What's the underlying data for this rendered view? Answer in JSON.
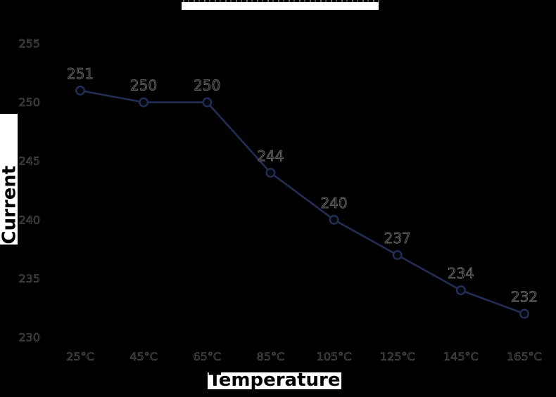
{
  "title": {
    "text": ""
  },
  "y_axis": {
    "label": "Current",
    "ticks": [
      230,
      235,
      240,
      245,
      250,
      255
    ]
  },
  "x_axis": {
    "label": "Temperature",
    "ticks": [
      "25°C",
      "45°C",
      "65°C",
      "85°C",
      "105°C",
      "125°C",
      "145°C",
      "165°C"
    ]
  },
  "chart_data": {
    "type": "line",
    "x": [
      "25°C",
      "45°C",
      "65°C",
      "85°C",
      "105°C",
      "125°C",
      "145°C",
      "165°C"
    ],
    "values": [
      251,
      250,
      250,
      244,
      240,
      237,
      234,
      232
    ],
    "point_labels": [
      "251",
      "250",
      "250",
      "244",
      "240",
      "237",
      "234",
      "232"
    ],
    "title": "",
    "xlabel": "Temperature",
    "ylabel": "Current",
    "ylim": [
      230,
      255
    ],
    "y_tick_step": 5,
    "grid": false,
    "legend": false,
    "marker": "circle"
  },
  "colors": {
    "background": "#000000",
    "line": "#232e55",
    "marker_fill": "#05070f",
    "value_label_fill": "#1a1a1a",
    "value_label_edge": "#7d7d7d",
    "tick_label_fill": "#141414",
    "tick_label_edge": "#5f5f5f",
    "highlight_bar": "#ffffff",
    "axis_title_text": "#000000"
  }
}
